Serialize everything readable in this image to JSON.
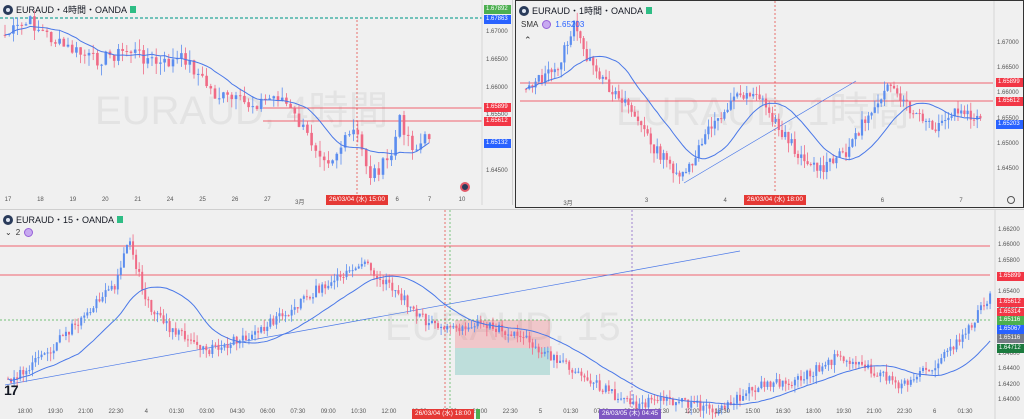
{
  "pane_top_left": {
    "title": "EURAUD・4時間・OANDA",
    "watermark": "EURAUD, 4時間",
    "price_labels": [
      "1.67000",
      "1.66500",
      "1.66000",
      "1.65500",
      "1.65000",
      "1.64500"
    ],
    "tags": [
      {
        "text": "1.67892",
        "color": "#4caf50"
      },
      {
        "text": "1.67863",
        "color": "#2962ff"
      },
      {
        "text": "1.65899",
        "color": "#f23645"
      },
      {
        "text": "1.65612",
        "color": "#f23645"
      },
      {
        "text": "1.65132",
        "color": "#2962ff"
      }
    ],
    "time_labels": [
      "17",
      "18",
      "19",
      "20",
      "21",
      "24",
      "25",
      "26",
      "27",
      "3月",
      "3",
      "5",
      "6",
      "7",
      "10"
    ],
    "crosshair_label": "26/03/04 (水)  15:00"
  },
  "pane_top_right": {
    "title": "EURAUD・1時間・OANDA",
    "indicator_name": "SMA",
    "indicator_value": "1.65203",
    "watermark": "EURAUD, 1時間",
    "price_labels": [
      "1.67000",
      "1.66500",
      "1.66000",
      "1.65500",
      "1.65000",
      "1.64500"
    ],
    "tags": [
      {
        "text": "1.65899",
        "color": "#f23645"
      },
      {
        "text": "1.65612",
        "color": "#f23645"
      },
      {
        "text": "1.65203",
        "color": "#2962ff"
      }
    ],
    "time_labels": [
      "3月",
      "3",
      "4",
      "5",
      "6",
      "7"
    ],
    "crosshair_label": "26/03/04 (水)  18:00"
  },
  "pane_bottom": {
    "title": "EURAUD・15・OANDA",
    "indicator_count": "2",
    "watermark": "EURAUD, 15",
    "price_labels": [
      "1.66200",
      "1.66000",
      "1.65800",
      "1.65600",
      "1.65400",
      "1.65200",
      "1.65000",
      "1.64800",
      "1.64600",
      "1.64400",
      "1.64200",
      "1.64000"
    ],
    "tags": [
      {
        "text": "1.65899",
        "color": "#f23645"
      },
      {
        "text": "1.65612",
        "color": "#f23645"
      },
      {
        "text": "1.65314",
        "color": "#f23645"
      },
      {
        "text": "1.65116",
        "color": "#4caf50"
      },
      {
        "text": "1.65067",
        "color": "#2962ff"
      },
      {
        "text": "1.65116",
        "color": "#787b86"
      },
      {
        "text": "1.64712",
        "color": "#1b7a3e"
      }
    ],
    "time_labels": [
      "18:00",
      "19:30",
      "21:00",
      "22:30",
      "4",
      "01:30",
      "03:00",
      "04:30",
      "06:00",
      "07:30",
      "09:00",
      "10:30",
      "12:00",
      "13:30",
      "15:00",
      "21:00",
      "22:30",
      "5",
      "01:30",
      "07:30",
      "09:00",
      "10:30",
      "12:00",
      "13:30",
      "15:00",
      "16:30",
      "18:00",
      "19:30",
      "21:00",
      "22:30",
      "6",
      "01:30"
    ],
    "crosshair_label_a": "26/03/04 (水)  18:00",
    "crosshair_label_b": "26/03/05 (木)  04:45",
    "logo": "17"
  },
  "colors": {
    "up": "#5b8def",
    "down": "#f06a85",
    "sma": "#4a78e8",
    "hline": "#f23645",
    "green": "#4caf50",
    "purple": "#7e57c2"
  }
}
